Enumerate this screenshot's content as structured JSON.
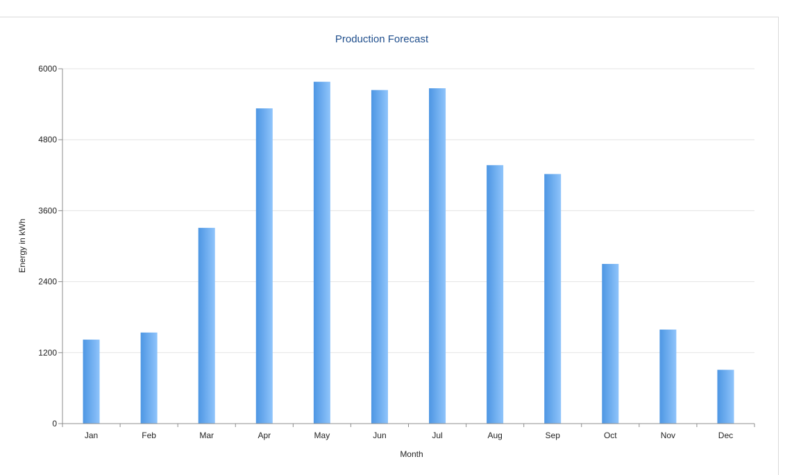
{
  "chart_data": {
    "type": "bar",
    "title": "Production Forecast",
    "xlabel": "Month",
    "ylabel": "Energy in kWh",
    "categories": [
      "Jan",
      "Feb",
      "Mar",
      "Apr",
      "May",
      "Jun",
      "Jul",
      "Aug",
      "Sep",
      "Oct",
      "Nov",
      "Dec"
    ],
    "series": [
      {
        "values": [
          1420,
          1540,
          3310,
          5330,
          5780,
          5640,
          5670,
          4370,
          4220,
          2700,
          1590,
          910
        ]
      }
    ],
    "yticks": [
      "0",
      "1200",
      "2400",
      "3600",
      "4800",
      "6000"
    ],
    "ylim": [
      0,
      6000
    ],
    "grid": true,
    "legend": "none",
    "colors": {
      "bar_start": "#4d96e3",
      "bar_end": "#8fc4fb",
      "title": "#1f4e8c"
    }
  }
}
